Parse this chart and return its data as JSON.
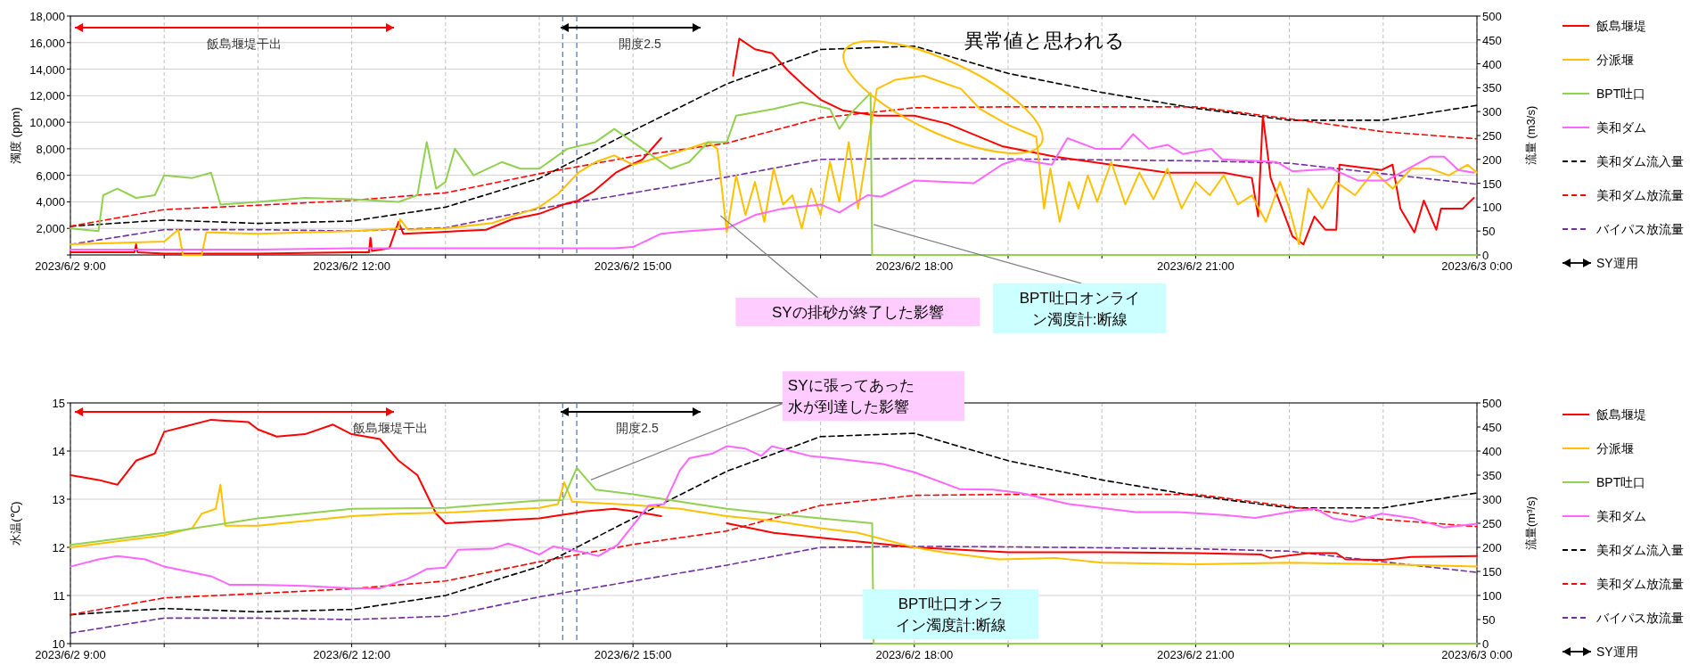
{
  "chart_data": [
    {
      "type": "line",
      "ylabel": "濁度 (ppm)",
      "y2label": "流量 (m3/s)",
      "xlim": [
        "2023-06-02T09:00",
        "2023-06-03T00:00"
      ],
      "xticks": [
        {
          "value": "2023-06-02T09:00",
          "label": "2023/6/2 9:00"
        },
        {
          "value": "2023-06-02T10:00",
          "label": null
        },
        {
          "value": "2023-06-02T11:00",
          "label": null
        },
        {
          "value": "2023-06-02T12:00",
          "label": "2023/6/2 12:00"
        },
        {
          "value": "2023-06-02T13:00",
          "label": null
        },
        {
          "value": "2023-06-02T14:00",
          "label": null
        },
        {
          "value": "2023-06-02T15:00",
          "label": "2023/6/2 15:00"
        },
        {
          "value": "2023-06-02T16:00",
          "label": null
        },
        {
          "value": "2023-06-02T17:00",
          "label": null
        },
        {
          "value": "2023-06-02T18:00",
          "label": "2023/6/2 18:00"
        },
        {
          "value": "2023-06-02T19:00",
          "label": null
        },
        {
          "value": "2023-06-02T20:00",
          "label": null
        },
        {
          "value": "2023-06-02T21:00",
          "label": "2023/6/2 21:00"
        },
        {
          "value": "2023-06-02T22:00",
          "label": null
        },
        {
          "value": "2023-06-02T23:00",
          "label": null
        },
        {
          "value": "2023-06-03T00:00",
          "label": "2023/6/3 0:00"
        }
      ],
      "ylim": [
        0,
        18000
      ],
      "yticks": [
        {
          "value": 0,
          "label": null
        },
        {
          "value": 2000,
          "label": "2,000"
        },
        {
          "value": 4000,
          "label": "4,000"
        },
        {
          "value": 6000,
          "label": "6,000"
        },
        {
          "value": 8000,
          "label": "8,000"
        },
        {
          "value": 10000,
          "label": "10,000"
        },
        {
          "value": 12000,
          "label": "12,000"
        },
        {
          "value": 14000,
          "label": "14,000"
        },
        {
          "value": 16000,
          "label": "16,000"
        },
        {
          "value": 18000,
          "label": "18,000"
        }
      ],
      "y2lim": [
        0,
        500
      ],
      "y2ticks": [
        0,
        50,
        100,
        150,
        200,
        250,
        300,
        350,
        400,
        450,
        500
      ],
      "grid": true,
      "legend": "right",
      "series": [
        {
          "name": "飯島堰堤",
          "color": "#ff0000",
          "x": [
            "2023-06-02T09:00",
            "2023-06-02T09:30",
            "2023-06-02T09:41",
            "2023-06-02T09:42",
            "2023-06-02T09:43",
            "2023-06-02T10:00",
            "2023-06-02T11:00",
            "2023-06-02T12:00",
            "2023-06-02T12:11",
            "2023-06-02T12:12",
            "2023-06-02T12:13",
            "2023-06-02T12:24",
            "2023-06-02T12:30",
            "2023-06-02T12:33",
            "2023-06-02T12:52",
            "2023-06-02T13:26",
            "2023-06-02T13:43",
            "2023-06-02T14:00",
            "2023-06-02T14:18",
            "2023-06-02T14:25",
            "2023-06-02T14:35",
            "2023-06-02T14:49",
            "2023-06-02T14:59",
            "2023-06-02T15:06",
            "2023-06-02T15:18",
            "2023-06-02T15:30",
            "2023-06-02T16:04",
            "2023-06-02T16:08",
            "2023-06-02T16:18",
            "2023-06-02T16:29",
            "2023-06-02T16:39",
            "2023-06-02T16:50",
            "2023-06-02T17:00",
            "2023-06-02T17:14",
            "2023-06-02T17:36",
            "2023-06-02T18:00",
            "2023-06-02T18:21",
            "2023-06-02T18:56",
            "2023-06-02T19:30",
            "2023-06-02T20:06",
            "2023-06-02T20:42",
            "2023-06-02T21:18",
            "2023-06-02T21:36",
            "2023-06-02T21:40",
            "2023-06-02T21:43",
            "2023-06-02T21:48",
            "2023-06-02T22:02",
            "2023-06-02T22:09",
            "2023-06-02T22:16",
            "2023-06-02T22:23",
            "2023-06-02T22:30",
            "2023-06-02T22:32",
            "2023-06-02T22:59",
            "2023-06-02T23:06",
            "2023-06-02T23:11",
            "2023-06-02T23:20",
            "2023-06-02T23:26",
            "2023-06-02T23:34",
            "2023-06-02T23:37",
            "2023-06-02T23:51",
            "2023-06-02T23:58"
          ],
          "values": [
            200,
            200,
            200,
            800,
            200,
            100,
            100,
            200,
            200,
            1300,
            300,
            500,
            2500,
            1600,
            1700,
            1900,
            2700,
            3100,
            3900,
            4100,
            4800,
            6200,
            6800,
            7200,
            8800,
            null,
            13500,
            16300,
            15500,
            15200,
            13900,
            12700,
            11700,
            10900,
            10500,
            10500,
            9900,
            8200,
            7400,
            6800,
            6200,
            6200,
            5800,
            2900,
            10500,
            5800,
            1400,
            800,
            2900,
            1900,
            1900,
            6800,
            6400,
            6800,
            3500,
            1700,
            4100,
            1900,
            3500,
            3500,
            4300
          ]
        },
        {
          "name": "分派堰",
          "color": "#ffc000",
          "x": [
            "2023-06-02T09:00",
            "2023-06-02T09:30",
            "2023-06-02T10:00",
            "2023-06-02T10:09",
            "2023-06-02T10:12",
            "2023-06-02T10:24",
            "2023-06-02T10:27",
            "2023-06-02T10:30",
            "2023-06-02T11:00",
            "2023-06-02T11:30",
            "2023-06-02T12:00",
            "2023-06-02T12:30",
            "2023-06-02T12:31",
            "2023-06-02T12:36",
            "2023-06-02T13:00",
            "2023-06-02T13:30",
            "2023-06-02T14:00",
            "2023-06-02T14:12",
            "2023-06-02T14:25",
            "2023-06-02T14:36",
            "2023-06-02T14:48",
            "2023-06-02T15:00",
            "2023-06-02T15:12",
            "2023-06-02T15:30",
            "2023-06-02T15:48",
            "2023-06-02T15:54",
            "2023-06-02T16:00",
            "2023-06-02T16:06",
            "2023-06-02T16:12",
            "2023-06-02T16:18",
            "2023-06-02T16:24",
            "2023-06-02T16:30",
            "2023-06-02T16:36",
            "2023-06-02T16:42",
            "2023-06-02T16:48",
            "2023-06-02T16:54",
            "2023-06-02T17:00",
            "2023-06-02T17:06",
            "2023-06-02T17:12",
            "2023-06-02T17:18",
            "2023-06-02T17:24",
            "2023-06-02T17:30",
            "2023-06-02T17:36",
            "2023-06-02T17:48",
            "2023-06-02T18:06",
            "2023-06-02T18:18",
            "2023-06-02T18:30",
            "2023-06-02T18:42",
            "2023-06-02T19:00",
            "2023-06-02T19:18",
            "2023-06-02T19:23",
            "2023-06-02T19:27",
            "2023-06-02T19:33",
            "2023-06-02T19:39",
            "2023-06-02T19:45",
            "2023-06-02T19:51",
            "2023-06-02T19:57",
            "2023-06-02T20:06",
            "2023-06-02T20:15",
            "2023-06-02T20:24",
            "2023-06-02T20:33",
            "2023-06-02T20:42",
            "2023-06-02T20:51",
            "2023-06-02T21:00",
            "2023-06-02T21:09",
            "2023-06-02T21:18",
            "2023-06-02T21:27",
            "2023-06-02T21:36",
            "2023-06-02T21:45",
            "2023-06-02T21:54",
            "2023-06-02T22:00",
            "2023-06-02T22:06",
            "2023-06-02T22:12",
            "2023-06-02T22:21",
            "2023-06-02T22:30",
            "2023-06-02T22:42",
            "2023-06-02T22:54",
            "2023-06-02T23:06",
            "2023-06-02T23:18",
            "2023-06-02T23:30",
            "2023-06-02T23:42",
            "2023-06-02T23:54",
            "2023-06-03T00:00"
          ],
          "values": [
            800,
            900,
            1000,
            1900,
            0,
            0,
            1700,
            1700,
            1600,
            1700,
            1800,
            2000,
            2700,
            1900,
            2000,
            2400,
            3600,
            4600,
            6200,
            7000,
            7500,
            6800,
            7200,
            7800,
            8500,
            8000,
            1700,
            6000,
            3000,
            5500,
            2500,
            6500,
            3800,
            4500,
            2000,
            5000,
            3000,
            7000,
            4000,
            8500,
            3500,
            8000,
            12500,
            13200,
            13500,
            13000,
            12500,
            11000,
            9800,
            8900,
            3500,
            6500,
            2500,
            5500,
            3500,
            6000,
            4000,
            7000,
            3800,
            6200,
            4200,
            6500,
            3500,
            5500,
            4500,
            6000,
            3800,
            4500,
            2500,
            5500,
            3500,
            800,
            5000,
            3500,
            5500,
            4500,
            6300,
            5000,
            6500,
            6500,
            6000,
            6800,
            6200
          ]
        },
        {
          "name": "BPT吐口",
          "color": "#92d050",
          "x": [
            "2023-06-02T09:00",
            "2023-06-02T09:18",
            "2023-06-02T09:21",
            "2023-06-02T09:30",
            "2023-06-02T09:42",
            "2023-06-02T09:54",
            "2023-06-02T10:00",
            "2023-06-02T10:18",
            "2023-06-02T10:30",
            "2023-06-02T10:36",
            "2023-06-02T11:00",
            "2023-06-02T11:30",
            "2023-06-02T12:00",
            "2023-06-02T12:30",
            "2023-06-02T12:42",
            "2023-06-02T12:48",
            "2023-06-02T12:54",
            "2023-06-02T13:00",
            "2023-06-02T13:06",
            "2023-06-02T13:18",
            "2023-06-02T13:36",
            "2023-06-02T13:48",
            "2023-06-02T14:00",
            "2023-06-02T14:18",
            "2023-06-02T14:36",
            "2023-06-02T14:48",
            "2023-06-02T15:06",
            "2023-06-02T15:24",
            "2023-06-02T15:36",
            "2023-06-02T15:48",
            "2023-06-02T16:00",
            "2023-06-02T16:06",
            "2023-06-02T16:30",
            "2023-06-02T16:48",
            "2023-06-02T17:06",
            "2023-06-02T17:12",
            "2023-06-02T17:18",
            "2023-06-02T17:32",
            "2023-06-02T17:33",
            "2023-06-03T00:00"
          ],
          "values": [
            2000,
            1800,
            4500,
            5000,
            4300,
            4500,
            6000,
            5800,
            6200,
            3800,
            4000,
            4300,
            4200,
            4000,
            4500,
            8500,
            5000,
            5500,
            8000,
            6000,
            7000,
            6500,
            6500,
            8000,
            8500,
            9500,
            8000,
            6500,
            7000,
            8500,
            8500,
            10500,
            11000,
            11500,
            11000,
            9500,
            10500,
            12200,
            0,
            0
          ]
        },
        {
          "name": "美和ダム",
          "color": "#ff66ff",
          "x": [
            "2023-06-02T09:00",
            "2023-06-02T10:00",
            "2023-06-02T11:00",
            "2023-06-02T12:00",
            "2023-06-02T13:00",
            "2023-06-02T14:00",
            "2023-06-02T14:48",
            "2023-06-02T15:00",
            "2023-06-02T15:18",
            "2023-06-02T15:36",
            "2023-06-02T16:00",
            "2023-06-02T16:18",
            "2023-06-02T16:36",
            "2023-06-02T17:00",
            "2023-06-02T17:12",
            "2023-06-02T17:30",
            "2023-06-02T17:39",
            "2023-06-02T18:00",
            "2023-06-02T18:38",
            "2023-06-02T18:56",
            "2023-06-02T19:06",
            "2023-06-02T19:28",
            "2023-06-02T19:38",
            "2023-06-02T19:56",
            "2023-06-02T20:12",
            "2023-06-02T20:20",
            "2023-06-02T20:30",
            "2023-06-02T20:42",
            "2023-06-02T20:52",
            "2023-06-02T21:10",
            "2023-06-02T21:17",
            "2023-06-02T21:52",
            "2023-06-02T22:02",
            "2023-06-02T22:27",
            "2023-06-02T22:44",
            "2023-06-02T23:02",
            "2023-06-02T23:30",
            "2023-06-02T23:39",
            "2023-06-02T23:48",
            "2023-06-02T23:58"
          ],
          "values": [
            400,
            400,
            400,
            500,
            500,
            500,
            500,
            600,
            1600,
            1800,
            2000,
            3000,
            3500,
            3800,
            3200,
            4500,
            4400,
            5600,
            5400,
            6800,
            7200,
            6800,
            8800,
            8000,
            8000,
            9100,
            8000,
            8300,
            7600,
            8000,
            7200,
            7000,
            6300,
            6500,
            5600,
            5600,
            7400,
            7400,
            6400,
            6200
          ]
        },
        {
          "name": "美和ダム流入量",
          "color": "#000000",
          "axis": "y2",
          "line_style": "dashed",
          "x": [
            "2023-06-02T09:00",
            "2023-06-02T10:00",
            "2023-06-02T11:00",
            "2023-06-02T12:00",
            "2023-06-02T13:00",
            "2023-06-02T14:00",
            "2023-06-02T15:00",
            "2023-06-02T16:00",
            "2023-06-02T17:00",
            "2023-06-02T18:00",
            "2023-06-02T19:00",
            "2023-06-02T20:00",
            "2023-06-02T21:00",
            "2023-06-02T22:00",
            "2023-06-02T23:00",
            "2023-06-03T00:00"
          ],
          "values": [
            60,
            73,
            66,
            71,
            100,
            160,
            260,
            358,
            430,
            437,
            380,
            340,
            307,
            282,
            282,
            313
          ]
        },
        {
          "name": "美和ダム放流量",
          "color": "#ff0000",
          "axis": "y2",
          "line_style": "dashed",
          "x": [
            "2023-06-02T09:00",
            "2023-06-02T10:00",
            "2023-06-02T11:00",
            "2023-06-02T12:00",
            "2023-06-02T13:00",
            "2023-06-02T14:00",
            "2023-06-02T15:00",
            "2023-06-02T16:00",
            "2023-06-02T17:00",
            "2023-06-02T18:00",
            "2023-06-02T19:00",
            "2023-06-02T20:00",
            "2023-06-02T21:00",
            "2023-06-02T22:00",
            "2023-06-02T23:00",
            "2023-06-03T00:00"
          ],
          "values": [
            60,
            95,
            104,
            114,
            130,
            170,
            206,
            234,
            287,
            308,
            310,
            310,
            310,
            285,
            258,
            243
          ]
        },
        {
          "name": "バイパス放流量",
          "color": "#7030a0",
          "axis": "y2",
          "line_style": "dashed",
          "x": [
            "2023-06-02T09:00",
            "2023-06-02T10:00",
            "2023-06-02T11:00",
            "2023-06-02T12:00",
            "2023-06-02T13:00",
            "2023-06-02T14:00",
            "2023-06-02T15:00",
            "2023-06-02T16:00",
            "2023-06-02T17:00",
            "2023-06-02T18:00",
            "2023-06-02T19:00",
            "2023-06-02T20:00",
            "2023-06-02T21:00",
            "2023-06-02T22:00",
            "2023-06-02T23:00",
            "2023-06-03T00:00"
          ],
          "values": [
            22,
            53,
            53,
            50,
            57,
            97,
            130,
            163,
            200,
            202,
            201,
            199,
            197,
            192,
            170,
            148
          ]
        }
      ],
      "ref_lines": [
        {
          "axis": "x",
          "value": "2023-06-02T14:15",
          "color": "#4472c4",
          "line_style": "dashed"
        },
        {
          "axis": "x",
          "value": "2023-06-02T14:24",
          "color": "#4472c4",
          "line_style": "dashed"
        }
      ],
      "annotations": [
        "異常値と思われる",
        {
          "text": "SYの排砂が終了した影響",
          "x": "2023-06-02T15:56",
          "y": 2960
        },
        {
          "text": "BPT吐口オンライン濁度計:断線",
          "x": "2023-06-02T17:34",
          "y": 2290
        },
        "飯島堰堤干出",
        "開度2.5",
        "SY運用"
      ]
    },
    {
      "type": "line",
      "ylabel": "水温(℃)",
      "y2label": "流量(m³/s)",
      "xlim": [
        "2023-06-02T09:00",
        "2023-06-03T00:00"
      ],
      "xticks": [
        {
          "value": "2023-06-02T09:00",
          "label": "2023/6/2 9:00"
        },
        {
          "value": "2023-06-02T10:00",
          "label": null
        },
        {
          "value": "2023-06-02T11:00",
          "label": null
        },
        {
          "value": "2023-06-02T12:00",
          "label": "2023/6/2 12:00"
        },
        {
          "value": "2023-06-02T13:00",
          "label": null
        },
        {
          "value": "2023-06-02T14:00",
          "label": null
        },
        {
          "value": "2023-06-02T15:00",
          "label": "2023/6/2 15:00"
        },
        {
          "value": "2023-06-02T16:00",
          "label": null
        },
        {
          "value": "2023-06-02T17:00",
          "label": null
        },
        {
          "value": "2023-06-02T18:00",
          "label": "2023/6/2 18:00"
        },
        {
          "value": "2023-06-02T19:00",
          "label": null
        },
        {
          "value": "2023-06-02T20:00",
          "label": null
        },
        {
          "value": "2023-06-02T21:00",
          "label": "2023/6/2 21:00"
        },
        {
          "value": "2023-06-02T22:00",
          "label": null
        },
        {
          "value": "2023-06-02T23:00",
          "label": null
        },
        {
          "value": "2023-06-03T00:00",
          "label": "2023/6/3 0:00"
        }
      ],
      "ylim": [
        10,
        15
      ],
      "yticks": [
        10,
        11,
        12,
        13,
        14,
        15
      ],
      "y2lim": [
        0,
        500
      ],
      "y2ticks": [
        0,
        50,
        100,
        150,
        200,
        250,
        300,
        350,
        400,
        450,
        500
      ],
      "grid": true,
      "legend": "right",
      "series": [
        {
          "name": "飯島堰堤",
          "color": "#ff0000",
          "x": [
            "2023-06-02T09:00",
            "2023-06-02T09:18",
            "2023-06-02T09:30",
            "2023-06-02T09:42",
            "2023-06-02T09:54",
            "2023-06-02T10:00",
            "2023-06-02T10:12",
            "2023-06-02T10:30",
            "2023-06-02T10:54",
            "2023-06-02T11:00",
            "2023-06-02T11:12",
            "2023-06-02T11:30",
            "2023-06-02T11:48",
            "2023-06-02T12:00",
            "2023-06-02T12:18",
            "2023-06-02T12:30",
            "2023-06-02T12:42",
            "2023-06-02T12:54",
            "2023-06-02T13:00",
            "2023-06-02T13:30",
            "2023-06-02T14:00",
            "2023-06-02T14:30",
            "2023-06-02T14:48",
            "2023-06-02T15:00",
            "2023-06-02T15:18",
            "2023-06-02T15:19",
            "2023-06-02T16:00",
            "2023-06-02T16:30",
            "2023-06-02T17:00",
            "2023-06-02T17:30",
            "2023-06-02T18:00",
            "2023-06-02T19:00",
            "2023-06-02T20:00",
            "2023-06-02T21:00",
            "2023-06-02T21:42",
            "2023-06-02T21:48",
            "2023-06-02T22:12",
            "2023-06-02T22:30",
            "2023-06-02T22:36",
            "2023-06-02T23:00",
            "2023-06-02T23:18",
            "2023-06-03T00:00"
          ],
          "values": [
            13.5,
            13.4,
            13.3,
            13.8,
            13.95,
            14.4,
            14.5,
            14.65,
            14.6,
            14.45,
            14.3,
            14.35,
            14.55,
            14.35,
            14.25,
            13.8,
            13.5,
            12.7,
            12.5,
            12.55,
            12.6,
            12.75,
            12.8,
            12.75,
            12.65,
            null,
            12.5,
            12.3,
            12.2,
            12.1,
            12.0,
            11.9,
            11.9,
            11.88,
            11.85,
            11.78,
            11.88,
            11.88,
            11.75,
            11.74,
            11.8,
            11.82
          ]
        },
        {
          "name": "分派堰",
          "color": "#ffc000",
          "x": [
            "2023-06-02T09:00",
            "2023-06-02T10:00",
            "2023-06-02T10:18",
            "2023-06-02T10:24",
            "2023-06-02T10:33",
            "2023-06-02T10:36",
            "2023-06-02T10:39",
            "2023-06-02T11:00",
            "2023-06-02T12:00",
            "2023-06-02T12:30",
            "2023-06-02T13:00",
            "2023-06-02T14:00",
            "2023-06-02T14:12",
            "2023-06-02T14:16",
            "2023-06-02T14:21",
            "2023-06-02T15:00",
            "2023-06-02T15:30",
            "2023-06-02T16:00",
            "2023-06-02T16:30",
            "2023-06-02T17:00",
            "2023-06-02T17:24",
            "2023-06-02T18:00",
            "2023-06-02T18:18",
            "2023-06-02T18:54",
            "2023-06-02T19:30",
            "2023-06-02T20:00",
            "2023-06-02T21:00",
            "2023-06-02T22:00",
            "2023-06-02T23:00",
            "2023-06-03T00:00"
          ],
          "values": [
            12.0,
            12.25,
            12.4,
            12.7,
            12.8,
            13.3,
            12.45,
            12.45,
            12.65,
            12.7,
            12.72,
            12.82,
            12.9,
            13.35,
            12.95,
            12.88,
            12.8,
            12.65,
            12.55,
            12.4,
            12.3,
            12.0,
            11.9,
            11.75,
            11.78,
            11.68,
            11.65,
            11.68,
            11.65,
            11.6
          ]
        },
        {
          "name": "BPT吐口",
          "color": "#92d050",
          "x": [
            "2023-06-02T09:00",
            "2023-06-02T10:00",
            "2023-06-02T11:00",
            "2023-06-02T12:00",
            "2023-06-02T13:00",
            "2023-06-02T14:00",
            "2023-06-02T14:15",
            "2023-06-02T14:18",
            "2023-06-02T14:24",
            "2023-06-02T14:36",
            "2023-06-02T15:00",
            "2023-06-02T15:30",
            "2023-06-02T16:00",
            "2023-06-02T16:30",
            "2023-06-02T17:00",
            "2023-06-02T17:33",
            "2023-06-02T17:34",
            "2023-06-03T00:00"
          ],
          "values": [
            12.05,
            12.3,
            12.6,
            12.8,
            12.82,
            12.97,
            12.98,
            13.2,
            13.65,
            13.2,
            13.1,
            12.95,
            12.8,
            12.7,
            12.6,
            12.5,
            10,
            10
          ]
        },
        {
          "name": "美和ダム",
          "color": "#ff66ff",
          "x": [
            "2023-06-02T09:00",
            "2023-06-02T09:18",
            "2023-06-02T09:30",
            "2023-06-02T09:48",
            "2023-06-02T10:00",
            "2023-06-02T10:30",
            "2023-06-02T10:42",
            "2023-06-02T11:00",
            "2023-06-02T11:30",
            "2023-06-02T12:00",
            "2023-06-02T12:18",
            "2023-06-02T12:36",
            "2023-06-02T12:48",
            "2023-06-02T13:00",
            "2023-06-02T13:08",
            "2023-06-02T13:30",
            "2023-06-02T13:40",
            "2023-06-02T13:48",
            "2023-06-02T14:00",
            "2023-06-02T14:09",
            "2023-06-02T14:28",
            "2023-06-02T14:38",
            "2023-06-02T14:50",
            "2023-06-02T15:10",
            "2023-06-02T15:20",
            "2023-06-02T15:30",
            "2023-06-02T15:36",
            "2023-06-02T15:51",
            "2023-06-02T16:00",
            "2023-06-02T16:12",
            "2023-06-02T16:22",
            "2023-06-02T16:29",
            "2023-06-02T16:53",
            "2023-06-02T17:11",
            "2023-06-02T17:40",
            "2023-06-02T18:00",
            "2023-06-02T18:29",
            "2023-06-02T18:50",
            "2023-06-02T19:08",
            "2023-06-02T19:25",
            "2023-06-02T19:39",
            "2023-06-02T20:22",
            "2023-06-02T20:49",
            "2023-06-02T21:18",
            "2023-06-02T21:38",
            "2023-06-02T22:03",
            "2023-06-02T22:17",
            "2023-06-02T22:28",
            "2023-06-02T22:40",
            "2023-06-02T22:59",
            "2023-06-02T23:20",
            "2023-06-02T23:39",
            "2023-06-03T00:00"
          ],
          "values": [
            11.6,
            11.75,
            11.82,
            11.75,
            11.6,
            11.4,
            11.22,
            11.22,
            11.2,
            11.15,
            11.15,
            11.35,
            11.55,
            11.58,
            11.95,
            11.97,
            12.08,
            12.0,
            11.85,
            12.02,
            11.9,
            11.82,
            12.05,
            12.87,
            12.9,
            13.6,
            13.85,
            13.95,
            14.1,
            14.05,
            13.9,
            14.1,
            13.9,
            13.84,
            13.73,
            13.56,
            13.21,
            13.2,
            13.13,
            13.0,
            12.9,
            12.73,
            12.73,
            12.67,
            12.61,
            12.75,
            12.8,
            12.6,
            12.53,
            12.7,
            12.6,
            12.41,
            12.49
          ]
        },
        {
          "name": "美和ダム流入量",
          "color": "#000000",
          "axis": "y2",
          "line_style": "dashed",
          "x": [
            "2023-06-02T09:00",
            "2023-06-02T10:00",
            "2023-06-02T11:00",
            "2023-06-02T12:00",
            "2023-06-02T13:00",
            "2023-06-02T14:00",
            "2023-06-02T15:00",
            "2023-06-02T16:00",
            "2023-06-02T17:00",
            "2023-06-02T18:00",
            "2023-06-02T19:00",
            "2023-06-02T20:00",
            "2023-06-02T21:00",
            "2023-06-02T22:00",
            "2023-06-02T23:00",
            "2023-06-03T00:00"
          ],
          "values": [
            60,
            73,
            66,
            71,
            100,
            160,
            260,
            358,
            430,
            437,
            380,
            340,
            307,
            282,
            282,
            313
          ]
        },
        {
          "name": "美和ダム放流量",
          "color": "#ff0000",
          "axis": "y2",
          "line_style": "dashed",
          "x": [
            "2023-06-02T09:00",
            "2023-06-02T10:00",
            "2023-06-02T11:00",
            "2023-06-02T12:00",
            "2023-06-02T13:00",
            "2023-06-02T14:00",
            "2023-06-02T15:00",
            "2023-06-02T16:00",
            "2023-06-02T17:00",
            "2023-06-02T18:00",
            "2023-06-02T19:00",
            "2023-06-02T20:00",
            "2023-06-02T21:00",
            "2023-06-02T22:00",
            "2023-06-02T23:00",
            "2023-06-03T00:00"
          ],
          "values": [
            60,
            95,
            104,
            114,
            130,
            170,
            206,
            234,
            287,
            308,
            310,
            310,
            310,
            285,
            258,
            243
          ]
        },
        {
          "name": "バイパス放流量",
          "color": "#7030a0",
          "axis": "y2",
          "line_style": "dashed",
          "x": [
            "2023-06-02T09:00",
            "2023-06-02T10:00",
            "2023-06-02T11:00",
            "2023-06-02T12:00",
            "2023-06-02T13:00",
            "2023-06-02T14:00",
            "2023-06-02T15:00",
            "2023-06-02T16:00",
            "2023-06-02T17:00",
            "2023-06-02T18:00",
            "2023-06-02T19:00",
            "2023-06-02T20:00",
            "2023-06-02T21:00",
            "2023-06-02T22:00",
            "2023-06-02T23:00",
            "2023-06-03T00:00"
          ],
          "values": [
            22,
            53,
            53,
            50,
            57,
            97,
            130,
            163,
            200,
            202,
            201,
            199,
            197,
            192,
            170,
            148
          ]
        }
      ],
      "ref_lines": [
        {
          "axis": "x",
          "value": "2023-06-02T14:15",
          "color": "#4472c4",
          "line_style": "dashed"
        },
        {
          "axis": "x",
          "value": "2023-06-02T14:24",
          "color": "#4472c4",
          "line_style": "dashed"
        }
      ],
      "annotations": [
        {
          "text": "SYに張ってあった水が到達した影響",
          "x": "2023-06-02T14:33",
          "y": 13.4
        },
        {
          "text": "BPT吐口オンライン濁度計:断線",
          "x": "2023-06-02T17:34",
          "y": 10.5
        },
        "飯島堰堤干出",
        "開度2.5",
        "SY運用"
      ]
    }
  ]
}
